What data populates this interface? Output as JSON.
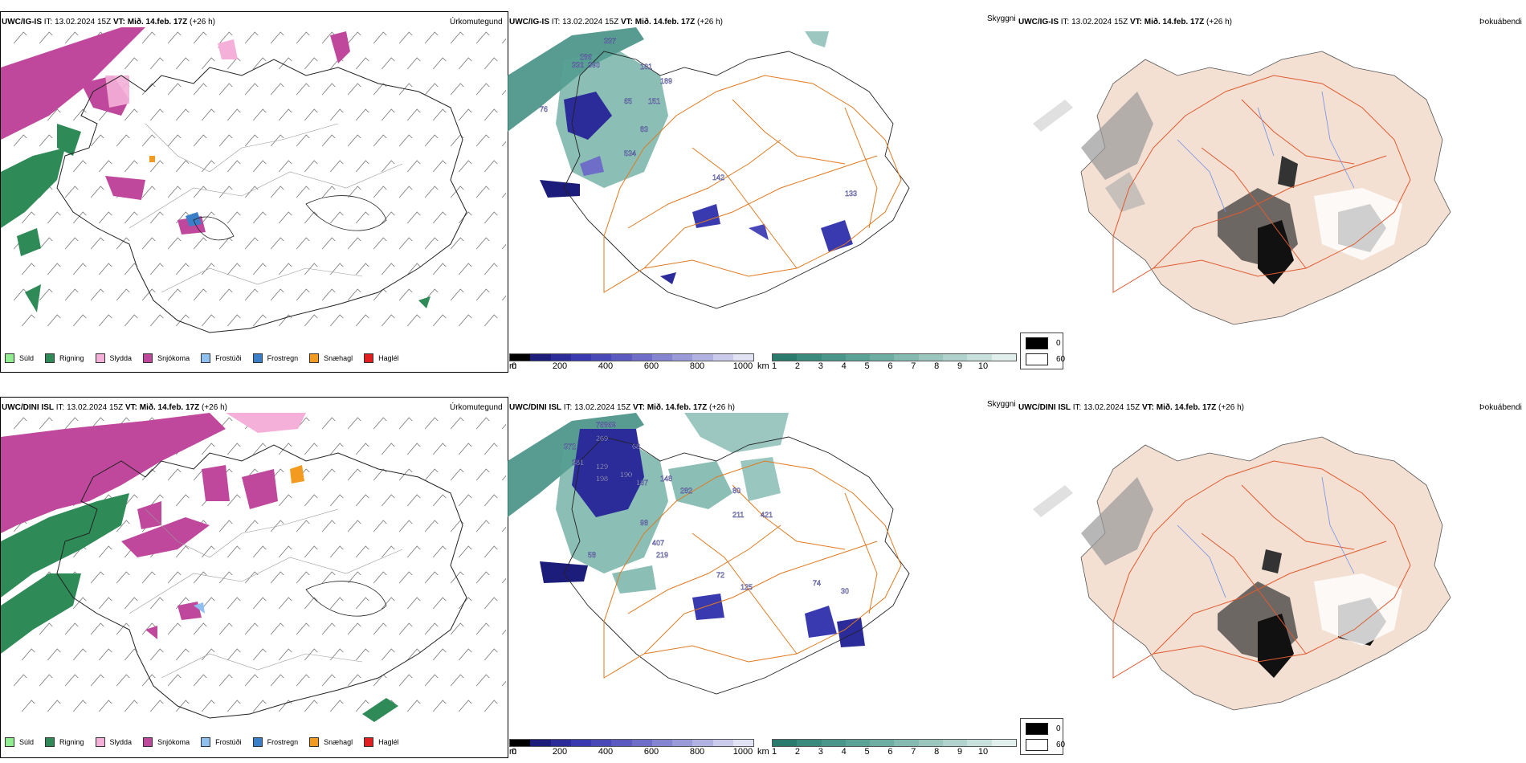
{
  "panels": [
    {
      "model": "UWC/IG-IS",
      "it": "IT: 13.02.2024 15Z",
      "vt": "VT: Mið. 14.feb. 17Z",
      "lead": "(+26 h)",
      "left_title": "Úrkomutegund",
      "mid_title": "Skyggni",
      "right_title": "Þokuábendi"
    },
    {
      "model": "UWC/DINI ISL",
      "it": "IT: 13.02.2024 15Z",
      "vt": "VT: Mið. 14.feb. 17Z",
      "lead": "(+26 h)",
      "left_title": "Úrkomutegund",
      "mid_title": "Skyggni",
      "right_title": "Þokuábendi"
    }
  ],
  "precip_legend": [
    {
      "label": "Súld",
      "color": "#90ee90"
    },
    {
      "label": "Rigning",
      "color": "#2e8b57"
    },
    {
      "label": "Slydda",
      "color": "#f4b0d8"
    },
    {
      "label": "Snjókoma",
      "color": "#c0489c"
    },
    {
      "label": "Frostúði",
      "color": "#8fc0f0"
    },
    {
      "label": "Frostregn",
      "color": "#3a7fc8"
    },
    {
      "label": "Snæhagl",
      "color": "#f39a20"
    },
    {
      "label": "Haglél",
      "color": "#e02020"
    }
  ],
  "ceiling_scale": {
    "unit": "m",
    "ticks": [
      "0",
      "200",
      "400",
      "600",
      "800",
      "1000"
    ],
    "colors": [
      "#000000",
      "#1c1c7a",
      "#2b2b9a",
      "#3a3ab0",
      "#4848b8",
      "#5a5ac0",
      "#6e6ec8",
      "#8484d0",
      "#9a9ad8",
      "#b2b2e2",
      "#cacaec",
      "#e2e2f5"
    ]
  },
  "visibility_scale": {
    "unit": "km",
    "ticks": [
      "1",
      "2",
      "3",
      "4",
      "5",
      "6",
      "7",
      "8",
      "9",
      "10"
    ],
    "colors": [
      "#2a7a6e",
      "#3a8a7e",
      "#4a968a",
      "#5aa296",
      "#6eaea2",
      "#84bab0",
      "#9ac6be",
      "#b0d2cc",
      "#c8e0dc",
      "#e0eeec"
    ]
  },
  "fog_legend": [
    {
      "value": "0",
      "color": "#000000"
    },
    {
      "value": "60",
      "color": "#ffffff"
    }
  ],
  "ceiling_labels_top": [
    "337",
    "286",
    "330",
    "390",
    "101",
    "189",
    "65",
    "151",
    "83",
    "76",
    "534",
    "142",
    "133"
  ],
  "ceiling_labels_bottom": [
    "768",
    "69",
    "269",
    "372",
    "68",
    "381",
    "129",
    "190",
    "198",
    "187",
    "148",
    "282",
    "80",
    "211",
    "421",
    "98",
    "407",
    "219",
    "58",
    "72",
    "125",
    "74",
    "30"
  ]
}
